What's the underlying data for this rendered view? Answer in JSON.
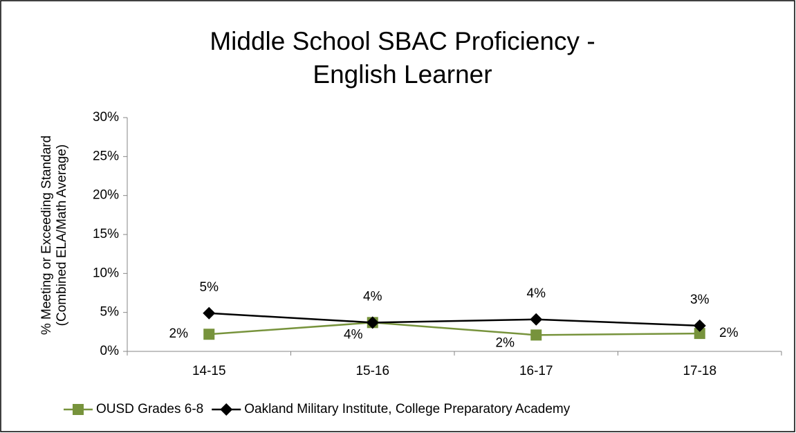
{
  "chart_data": {
    "type": "line",
    "title": [
      "Middle School SBAC Proficiency -",
      "English Learner"
    ],
    "y_label": [
      "% Meeting or Exceeding Standard",
      "(Combined ELA/Math Average)"
    ],
    "categories": [
      "14-15",
      "15-16",
      "16-17",
      "17-18"
    ],
    "series": [
      {
        "name": "OUSD Grades 6-8",
        "color": "#77933c",
        "marker": "square",
        "values": [
          2.2,
          3.7,
          2.1,
          2.3
        ],
        "value_labels": [
          "2%",
          "4%",
          "2%",
          "2%"
        ]
      },
      {
        "name": "Oakland Military Institute, College Preparatory Academy",
        "color": "#000000",
        "marker": "diamond",
        "values": [
          4.9,
          3.7,
          4.1,
          3.3
        ],
        "value_labels": [
          "5%",
          "4%",
          "4%",
          "3%"
        ]
      }
    ],
    "ylim": [
      0,
      30
    ],
    "yticks": [
      {
        "value": 0,
        "label": "0%"
      },
      {
        "value": 5,
        "label": "5%"
      },
      {
        "value": 10,
        "label": "10%"
      },
      {
        "value": 15,
        "label": "15%"
      },
      {
        "value": 20,
        "label": "20%"
      },
      {
        "value": 25,
        "label": "25%"
      },
      {
        "value": 30,
        "label": "30%"
      }
    ],
    "legend": "bottom",
    "grid": false
  }
}
